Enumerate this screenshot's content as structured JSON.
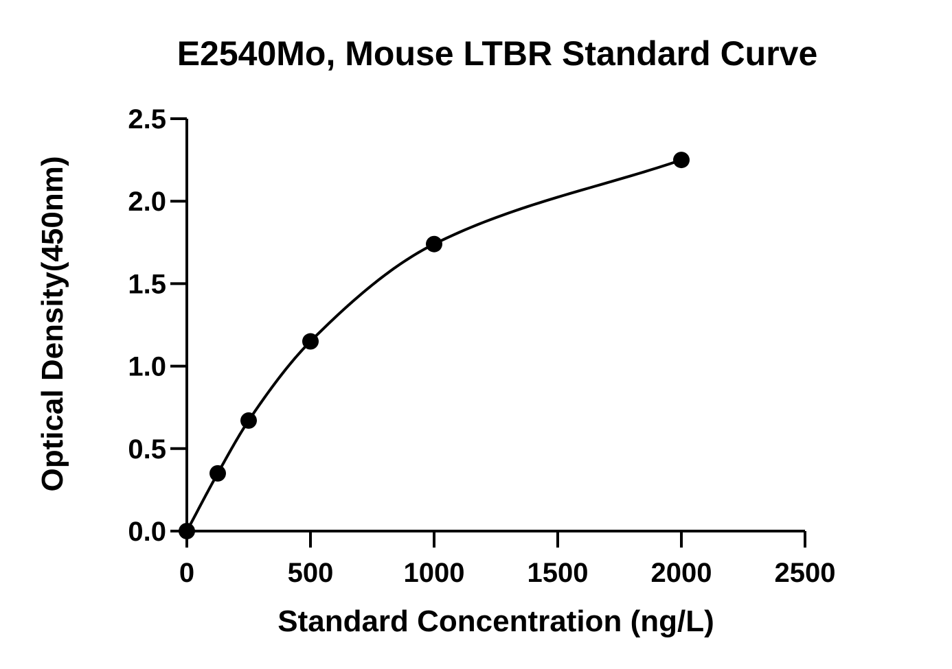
{
  "chart_data": {
    "type": "scatter",
    "title": "E2540Mo, Mouse LTBR Standard Curve",
    "xlabel": "Standard Concentration (ng/L)",
    "ylabel": "Optical Density(450nm)",
    "xlim": [
      0,
      2500
    ],
    "ylim": [
      0,
      2.5
    ],
    "xticks": [
      0,
      500,
      1000,
      1500,
      2000,
      2500
    ],
    "yticks": [
      0.0,
      0.5,
      1.0,
      1.5,
      2.0,
      2.5
    ],
    "xtick_labels": [
      "0",
      "500",
      "1000",
      "1500",
      "2000",
      "2500"
    ],
    "ytick_labels": [
      "0.0",
      "0.5",
      "1.0",
      "1.5",
      "2.0",
      "2.5"
    ],
    "grid": false,
    "legend": "none",
    "series": [
      {
        "x": [
          0,
          125,
          250,
          500,
          1000,
          2000
        ],
        "y": [
          0.0,
          0.35,
          0.67,
          1.15,
          1.74,
          2.25
        ],
        "marker": "circle",
        "fit_line": "smooth curve through points"
      }
    ],
    "colors": {
      "points": "#000000",
      "curve": "#000000",
      "axes": "#000000"
    }
  }
}
